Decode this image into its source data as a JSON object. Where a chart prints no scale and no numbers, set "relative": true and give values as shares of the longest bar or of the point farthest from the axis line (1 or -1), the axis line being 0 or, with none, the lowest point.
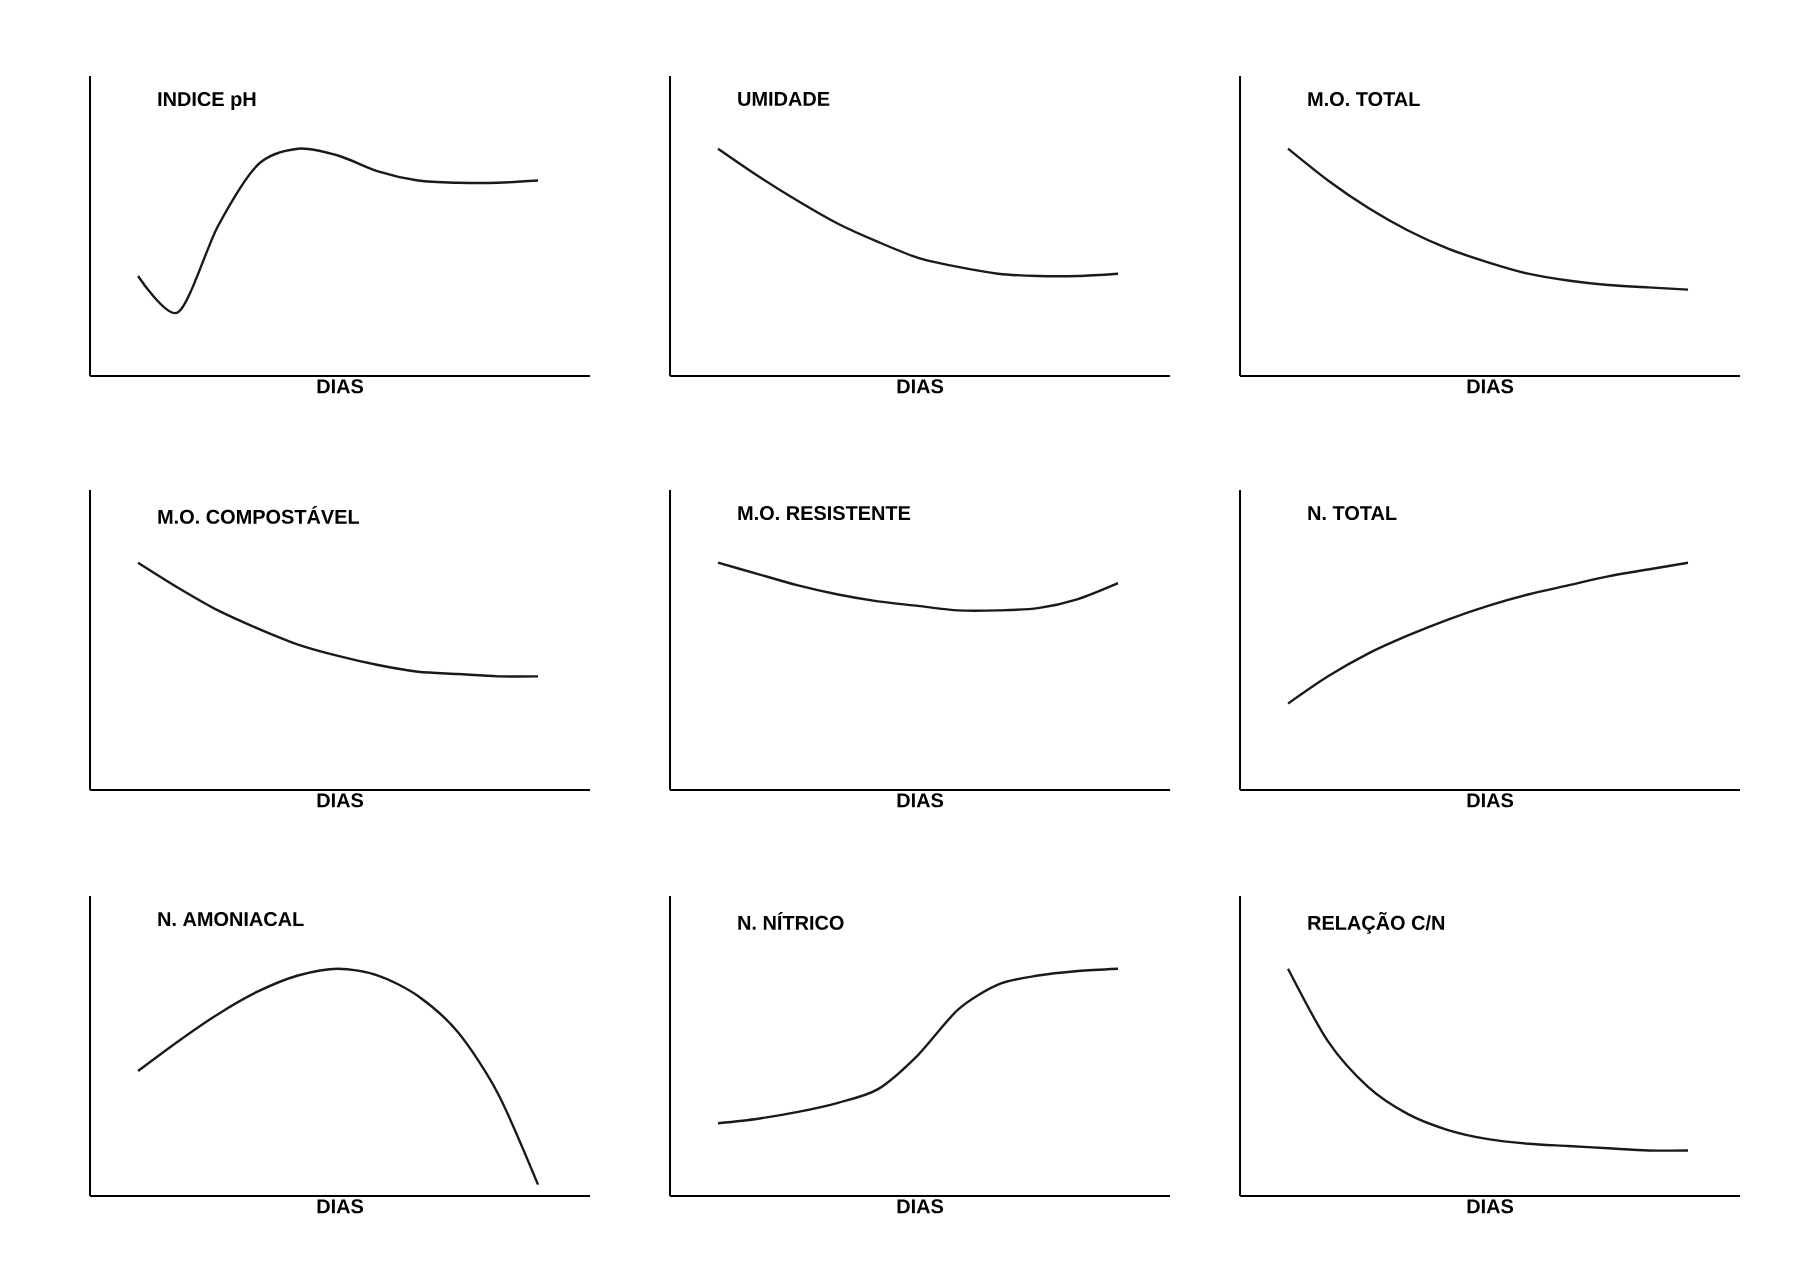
{
  "chart_data": [
    {
      "type": "line",
      "title": "INDICE pH",
      "xlabel": "DIAS",
      "relative": true,
      "color": "#1a1a1a",
      "categories": [
        null,
        null,
        null,
        null,
        null,
        null,
        null,
        null,
        null,
        null,
        null
      ],
      "values": [
        0.44,
        0.28,
        0.66,
        0.93,
        1.0,
        0.97,
        0.9,
        0.86,
        0.85,
        0.85,
        0.86
      ]
    },
    {
      "type": "line",
      "title": "UMIDADE",
      "xlabel": "DIAS",
      "relative": true,
      "color": "#1a1a1a",
      "categories": [
        null,
        null,
        null,
        null,
        null,
        null,
        null,
        null,
        null,
        null,
        null
      ],
      "values": [
        1.0,
        0.88,
        0.77,
        0.67,
        0.59,
        0.52,
        0.48,
        0.45,
        0.44,
        0.44,
        0.45
      ]
    },
    {
      "type": "line",
      "title": "M.O. TOTAL",
      "xlabel": "DIAS",
      "relative": true,
      "color": "#1a1a1a",
      "categories": [
        null,
        null,
        null,
        null,
        null,
        null,
        null,
        null,
        null,
        null,
        null
      ],
      "values": [
        1.0,
        0.86,
        0.74,
        0.64,
        0.56,
        0.5,
        0.45,
        0.42,
        0.4,
        0.39,
        0.38
      ]
    },
    {
      "type": "line",
      "title": "M.O. COMPOSTÁVEL",
      "xlabel": "DIAS",
      "relative": true,
      "color": "#1a1a1a",
      "categories": [
        null,
        null,
        null,
        null,
        null,
        null,
        null,
        null,
        null,
        null,
        null
      ],
      "values": [
        1.0,
        0.89,
        0.79,
        0.71,
        0.64,
        0.59,
        0.55,
        0.52,
        0.51,
        0.5,
        0.5
      ]
    },
    {
      "type": "line",
      "title": "M.O. RESISTENTE",
      "xlabel": "DIAS",
      "relative": true,
      "color": "#1a1a1a",
      "categories": [
        null,
        null,
        null,
        null,
        null,
        null,
        null,
        null,
        null,
        null,
        null
      ],
      "values": [
        1.0,
        0.95,
        0.9,
        0.86,
        0.83,
        0.81,
        0.79,
        0.79,
        0.8,
        0.84,
        0.91
      ]
    },
    {
      "type": "line",
      "title": "N. TOTAL",
      "xlabel": "DIAS",
      "relative": true,
      "color": "#1a1a1a",
      "categories": [
        null,
        null,
        null,
        null,
        null,
        null,
        null,
        null,
        null,
        null,
        null
      ],
      "values": [
        0.38,
        0.5,
        0.6,
        0.68,
        0.75,
        0.81,
        0.86,
        0.9,
        0.94,
        0.97,
        1.0
      ]
    },
    {
      "type": "line",
      "title": "N. AMONIACAL",
      "xlabel": "DIAS",
      "relative": true,
      "color": "#1a1a1a",
      "categories": [
        null,
        null,
        null,
        null,
        null,
        null,
        null,
        null,
        null,
        null,
        null
      ],
      "values": [
        0.55,
        0.68,
        0.8,
        0.9,
        0.97,
        1.0,
        0.97,
        0.88,
        0.72,
        0.45,
        0.05
      ]
    },
    {
      "type": "line",
      "title": "N. NÍTRICO",
      "xlabel": "DIAS",
      "relative": true,
      "color": "#1a1a1a",
      "categories": [
        null,
        null,
        null,
        null,
        null,
        null,
        null,
        null,
        null,
        null,
        null
      ],
      "values": [
        0.32,
        0.34,
        0.37,
        0.41,
        0.47,
        0.62,
        0.82,
        0.93,
        0.97,
        0.99,
        1.0
      ]
    },
    {
      "type": "line",
      "title": "RELAÇÃO C/N",
      "xlabel": "DIAS",
      "relative": true,
      "color": "#1a1a1a",
      "categories": [
        null,
        null,
        null,
        null,
        null,
        null,
        null,
        null,
        null,
        null,
        null
      ],
      "values": [
        1.0,
        0.68,
        0.48,
        0.36,
        0.29,
        0.25,
        0.23,
        0.22,
        0.21,
        0.2,
        0.2
      ]
    }
  ]
}
